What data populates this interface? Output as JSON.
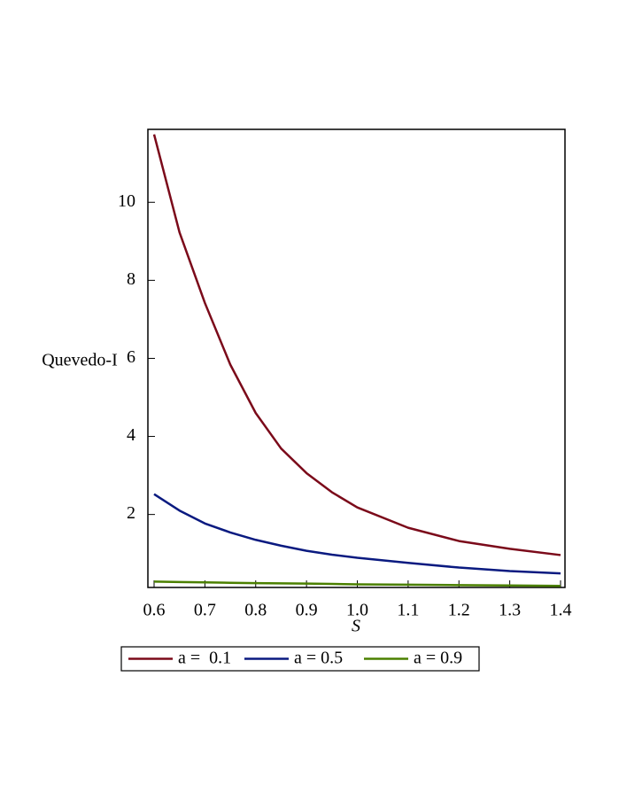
{
  "chart_data": {
    "type": "line",
    "y_label": "Quevedo-I",
    "x_label": "S",
    "x": [
      0.6,
      0.65,
      0.7,
      0.75,
      0.8,
      0.85,
      0.9,
      0.95,
      1.0,
      1.1,
      1.2,
      1.3,
      1.4
    ],
    "series": [
      {
        "name": "a =  0.1",
        "color": "#7b0a1a",
        "values": [
          11.74,
          9.23,
          7.42,
          5.84,
          4.6,
          3.69,
          3.06,
          2.57,
          2.18,
          1.66,
          1.32,
          1.12,
          0.96
        ]
      },
      {
        "name": "a = 0.5",
        "color": "#0a1a80",
        "values": [
          2.52,
          2.1,
          1.77,
          1.54,
          1.35,
          1.2,
          1.07,
          0.97,
          0.89,
          0.76,
          0.64,
          0.55,
          0.49
        ]
      },
      {
        "name": "a = 0.9",
        "color": "#4b8000",
        "values": [
          0.28,
          0.27,
          0.26,
          0.25,
          0.24,
          0.235,
          0.23,
          0.22,
          0.21,
          0.2,
          0.19,
          0.18,
          0.17
        ]
      }
    ],
    "xlim": [
      0.6,
      1.4
    ],
    "ylim": [
      0.13,
      11.8
    ],
    "xticks": [
      0.6,
      0.7,
      0.8,
      0.9,
      {
        "value": 1,
        "label": "1.0"
      },
      1.1,
      1.2,
      1.3,
      1.4
    ],
    "yticks": [
      2,
      4,
      6,
      8,
      10
    ],
    "grid": false,
    "legend": "bottom"
  }
}
